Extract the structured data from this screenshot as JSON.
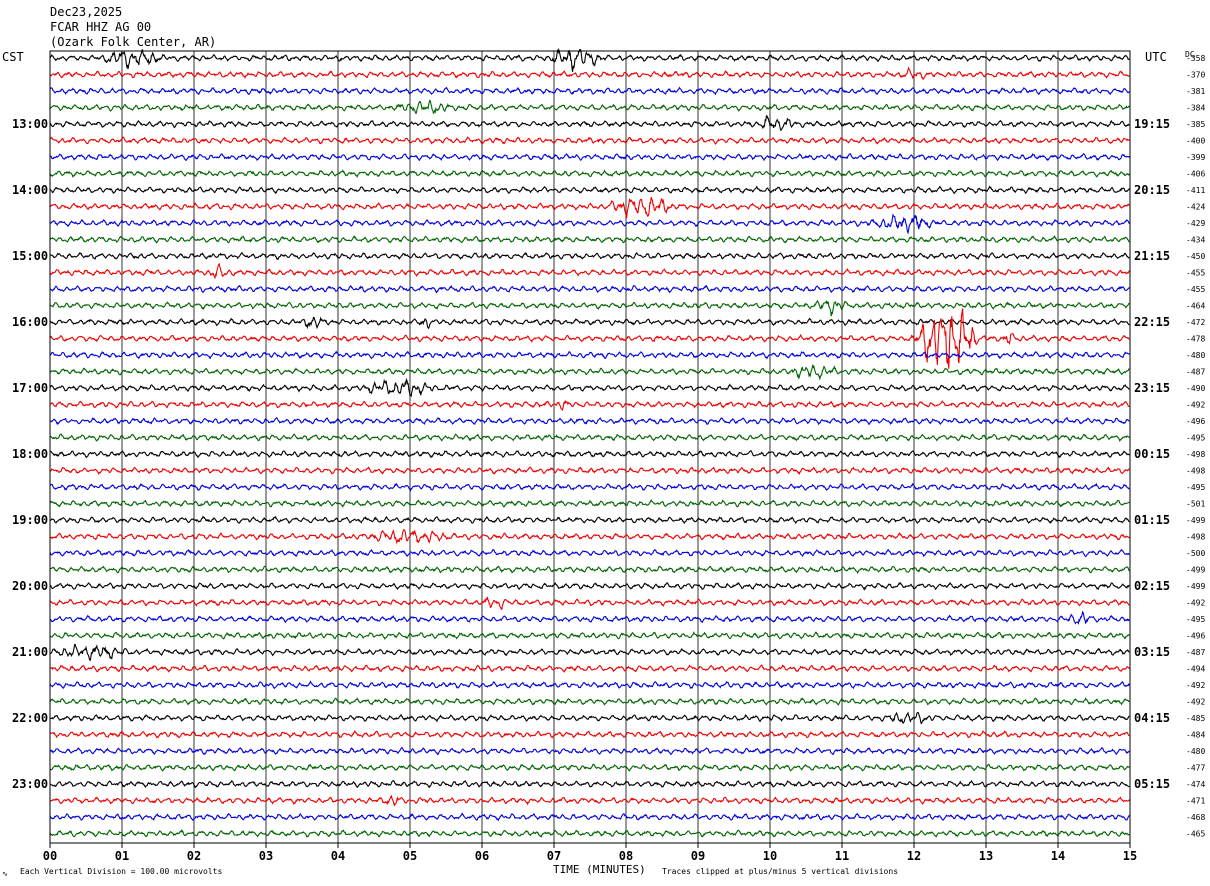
{
  "header": {
    "date": "Dec23,2025",
    "station": "FCAR HHZ AG 00",
    "location": "(Ozark Folk Center, AR)"
  },
  "left_axis_label": "CST",
  "right_axis_label": "UTC",
  "dc_label": "DC",
  "footer": {
    "scale_note": "Each Vertical Division =  100.00 microvolts",
    "xlabel": "TIME (MINUTES)",
    "clip_note": "Traces clipped at plus/minus 5 vertical divisions"
  },
  "chart_data": {
    "type": "line",
    "title": "FCAR HHZ AG 00",
    "xlabel": "TIME (MINUTES)",
    "xlim": [
      0,
      15
    ],
    "x_ticks": [
      "00",
      "01",
      "02",
      "03",
      "04",
      "05",
      "06",
      "07",
      "08",
      "09",
      "10",
      "11",
      "12",
      "13",
      "14",
      "15"
    ],
    "trace_colors": [
      "#000000",
      "#ee0000",
      "#0000dd",
      "#006400"
    ],
    "trace_count": 48,
    "cst_labels": [
      "13:00",
      "14:00",
      "15:00",
      "16:00",
      "17:00",
      "18:00",
      "19:00",
      "20:00",
      "21:00",
      "22:00",
      "23:00"
    ],
    "utc_labels": [
      "19:15",
      "20:15",
      "21:15",
      "22:15",
      "23:15",
      "00:15",
      "01:15",
      "02:15",
      "03:15",
      "04:15",
      "05:15"
    ],
    "dc_offsets": [
      -358,
      -370,
      -381,
      -384,
      -385,
      -400,
      -399,
      -406,
      -411,
      -424,
      -429,
      -434,
      -450,
      -455,
      -455,
      -464,
      -472,
      -478,
      -480,
      -487,
      -490,
      -492,
      -496,
      -495,
      -498,
      -498,
      -495,
      -501,
      -499,
      -498,
      -500,
      -499,
      -499,
      -492,
      -495,
      -496,
      -487,
      -494,
      -492,
      -492,
      -485,
      -484,
      -480,
      -477,
      -474,
      -471,
      -468,
      -465
    ],
    "grid": true,
    "events": [
      {
        "trace": 0,
        "minute_start": 0.7,
        "minute_end": 1.6,
        "amp": 2.5
      },
      {
        "trace": 0,
        "minute_start": 6.9,
        "minute_end": 7.7,
        "amp": 3
      },
      {
        "trace": 1,
        "minute_start": 11.8,
        "minute_end": 12.2,
        "amp": 1.5
      },
      {
        "trace": 3,
        "minute_start": 4.8,
        "minute_end": 5.6,
        "amp": 1.5
      },
      {
        "trace": 4,
        "minute_start": 9.8,
        "minute_end": 10.4,
        "amp": 1.8
      },
      {
        "trace": 9,
        "minute_start": 7.7,
        "minute_end": 8.7,
        "amp": 3
      },
      {
        "trace": 10,
        "minute_start": 11.4,
        "minute_end": 12.3,
        "amp": 2.5
      },
      {
        "trace": 13,
        "minute_start": 2.2,
        "minute_end": 2.5,
        "amp": 2
      },
      {
        "trace": 15,
        "minute_start": 10.6,
        "minute_end": 11.1,
        "amp": 2
      },
      {
        "trace": 16,
        "minute_start": 3.5,
        "minute_end": 3.8,
        "amp": 1.8
      },
      {
        "trace": 16,
        "minute_start": 5.1,
        "minute_end": 5.3,
        "amp": 1.8
      },
      {
        "trace": 17,
        "minute_start": 12.0,
        "minute_end": 12.9,
        "amp": 12
      },
      {
        "trace": 17,
        "minute_start": 13.2,
        "minute_end": 13.4,
        "amp": 2
      },
      {
        "trace": 19,
        "minute_start": 10.2,
        "minute_end": 11.0,
        "amp": 1.5
      },
      {
        "trace": 20,
        "minute_start": 4.3,
        "minute_end": 5.4,
        "amp": 2.2
      },
      {
        "trace": 21,
        "minute_start": 7.0,
        "minute_end": 7.2,
        "amp": 1.2
      },
      {
        "trace": 29,
        "minute_start": 4.4,
        "minute_end": 5.6,
        "amp": 1.8
      },
      {
        "trace": 33,
        "minute_start": 6.0,
        "minute_end": 6.4,
        "amp": 1.5
      },
      {
        "trace": 34,
        "minute_start": 14.1,
        "minute_end": 14.5,
        "amp": 1.5
      },
      {
        "trace": 36,
        "minute_start": 0.0,
        "minute_end": 1.1,
        "amp": 2
      },
      {
        "trace": 40,
        "minute_start": 11.6,
        "minute_end": 12.3,
        "amp": 1.3
      },
      {
        "trace": 45,
        "minute_start": 4.6,
        "minute_end": 4.9,
        "amp": 1.2
      }
    ]
  }
}
